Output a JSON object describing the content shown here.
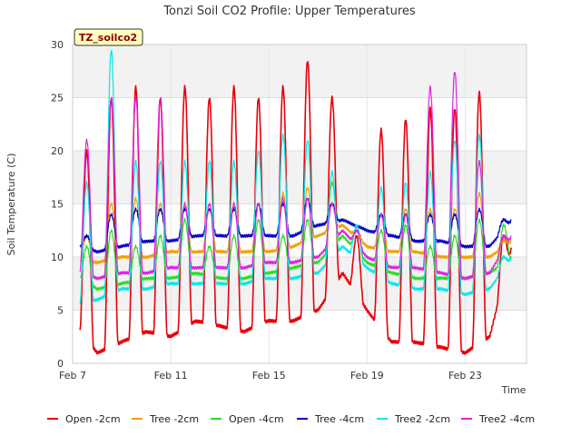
{
  "chart_data": {
    "type": "line",
    "title": "Tonzi Soil CO2 Profile: Upper Temperatures",
    "xlabel": "Time",
    "ylabel": "Soil Temperature (C)",
    "site_tag": "TZ_soilco2",
    "xlim": [
      7,
      25.5
    ],
    "ylim": [
      0,
      30
    ],
    "x_ticks": [
      7,
      11,
      15,
      19,
      23
    ],
    "x_tick_labels": [
      "Feb 7",
      "Feb 11",
      "Feb 15",
      "Feb 19",
      "Feb 23"
    ],
    "y_ticks": [
      0,
      5,
      10,
      15,
      20,
      25,
      30
    ],
    "legend_position": "bottom",
    "grid": true,
    "x_start_day": 7.3,
    "x_end_day": 24.9,
    "daily_days": [
      7.3,
      8,
      9,
      10,
      11,
      12,
      13,
      14,
      15,
      16,
      17,
      18,
      19,
      20,
      21,
      22,
      23,
      24,
      24.9
    ],
    "series": [
      {
        "name": "Open -2cm",
        "color": "#e8000b",
        "daily_min": [
          3,
          1,
          2,
          3,
          2.5,
          4,
          3.5,
          3,
          4,
          4,
          5,
          8.5,
          5,
          2,
          2,
          1.5,
          1,
          2.5,
          11
        ],
        "daily_max": [
          20,
          24,
          25,
          26,
          25,
          26,
          25,
          26,
          25,
          26,
          28.5,
          25,
          12,
          22,
          23,
          24,
          24,
          25.5,
          12
        ]
      },
      {
        "name": "Tree -2cm",
        "color": "#f0a000",
        "daily_min": [
          9.5,
          9.5,
          10,
          10,
          10.5,
          10.5,
          10.5,
          10.5,
          10.5,
          11,
          12,
          13,
          11,
          10.5,
          10.5,
          10,
          10,
          10,
          11.5
        ],
        "daily_max": [
          12,
          14,
          15,
          15.5,
          15,
          15,
          15,
          15,
          15,
          16,
          16.5,
          15,
          12.5,
          14,
          14.5,
          14.5,
          14.5,
          16,
          11.5
        ]
      },
      {
        "name": "Open -4cm",
        "color": "#20e020",
        "daily_min": [
          8,
          7,
          7.5,
          8,
          8,
          8.5,
          8,
          8,
          8.5,
          9,
          9.5,
          12,
          9.5,
          8.5,
          8,
          8,
          8,
          8.5,
          10
        ]
      },
      {
        "name": "Tree -4cm",
        "color": "#0000c8",
        "daily_min": [
          11,
          10.5,
          11,
          11.5,
          11.5,
          12,
          12,
          12,
          12,
          12,
          13,
          13.5,
          12.5,
          12,
          11.5,
          11.5,
          11,
          11,
          13.5
        ],
        "daily_max": [
          12,
          13,
          14,
          14.5,
          14.5,
          14.5,
          14.5,
          14.5,
          15,
          15,
          15.5,
          15,
          12.5,
          14,
          14,
          14,
          14,
          14.5,
          13.5
        ]
      },
      {
        "name": "Tree2 -2cm",
        "color": "#00e8e8",
        "daily_min": [
          5.5,
          6,
          7,
          7,
          7.5,
          7.5,
          7.5,
          7.5,
          8,
          8,
          8.5,
          11,
          9,
          7.5,
          7,
          7,
          6.5,
          7,
          10
        ],
        "daily_max": [
          17,
          19,
          29.5,
          19,
          19,
          19,
          19,
          19,
          20,
          21.5,
          21,
          18,
          13,
          16.5,
          17,
          18,
          21,
          21.5,
          10
        ]
      },
      {
        "name": "Tree2 -4cm",
        "color": "#e020e0",
        "daily_min": [
          8.5,
          8,
          8.5,
          8.5,
          9,
          9,
          9,
          9,
          9.5,
          9.5,
          10,
          12.5,
          10,
          9,
          9,
          8.5,
          8,
          8.5,
          12
        ],
        "daily_max": [
          21,
          14,
          25,
          25,
          25,
          15,
          15,
          15,
          15,
          15.5,
          15.5,
          15,
          12.5,
          14,
          14,
          26,
          27.5,
          19,
          12
        ]
      }
    ]
  }
}
